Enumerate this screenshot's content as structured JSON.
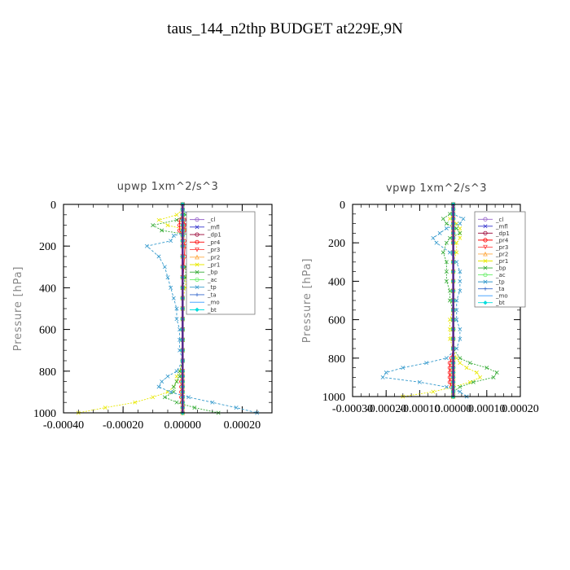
{
  "figure": {
    "title": "taus_144_n2thp  BUDGET at229E,9N"
  },
  "chart_data": [
    {
      "type": "line",
      "title": "upwp   1xm^2/s^3",
      "ylabel": "Pressure [hPa]",
      "xlabel": "",
      "xlim": [
        -0.0004,
        0.0003
      ],
      "ylim": [
        1000,
        0
      ],
      "xticks": [
        -0.0004,
        -0.0002,
        0.0,
        0.0002
      ],
      "xtick_labels": [
        "-0.00040",
        "-0.00020",
        "0.00000",
        "0.00020"
      ],
      "yticks": [
        0,
        200,
        400,
        600,
        800,
        1000
      ],
      "ytick_labels": [
        "0",
        "200",
        "400",
        "600",
        "800",
        "1000"
      ],
      "legend_position": "top-right",
      "y": [
        0,
        25,
        50,
        75,
        100,
        125,
        150,
        175,
        200,
        250,
        300,
        350,
        400,
        450,
        500,
        550,
        600,
        650,
        700,
        750,
        800,
        825,
        850,
        875,
        900,
        925,
        950,
        975,
        1000
      ],
      "series": [
        {
          "name": "_cl",
          "color": "#9966cc",
          "marker": "o",
          "values": [
            0,
            0,
            0,
            0,
            0,
            0,
            0,
            0,
            0,
            0,
            0,
            0,
            0,
            0,
            0,
            0,
            0,
            0,
            0,
            0,
            0,
            0,
            0,
            0,
            0,
            0,
            0,
            0,
            0
          ]
        },
        {
          "name": "_mfl",
          "color": "#3333cc",
          "marker": "x",
          "values": [
            0,
            0,
            0,
            0,
            0,
            0,
            0,
            0,
            0,
            0,
            0,
            0,
            0,
            0,
            0,
            0,
            0,
            0,
            0,
            0,
            0,
            0,
            0,
            0,
            0,
            0,
            0,
            0,
            0
          ]
        },
        {
          "name": "_dp1",
          "color": "#990033",
          "marker": "o",
          "values": [
            0,
            0,
            0,
            5e-06,
            5e-06,
            5e-06,
            0,
            0,
            0,
            0,
            0,
            0,
            0,
            0,
            0,
            0,
            0,
            0,
            0,
            0,
            0,
            0,
            0,
            0,
            0,
            0,
            0,
            0,
            0
          ]
        },
        {
          "name": "_pr4",
          "color": "#ff0000",
          "marker": "o",
          "values": [
            0,
            0,
            0,
            -1e-05,
            -1e-05,
            -1e-05,
            0,
            5e-06,
            8e-06,
            6e-06,
            4e-06,
            2e-06,
            1e-06,
            0,
            0,
            0,
            0,
            0,
            0,
            0,
            -3e-06,
            -3e-06,
            -4e-06,
            -4e-06,
            -4e-06,
            -4e-06,
            -2e-06,
            0,
            0
          ]
        },
        {
          "name": "_pr3",
          "color": "#ff4444",
          "marker": "v",
          "values": [
            0,
            0,
            0,
            5e-06,
            8e-06,
            8e-06,
            0,
            0,
            0,
            0,
            0,
            0,
            0,
            0,
            0,
            0,
            0,
            0,
            0,
            0,
            0,
            0,
            0,
            0,
            0,
            0,
            0,
            0,
            0
          ]
        },
        {
          "name": "_pr2",
          "color": "#ffaa44",
          "marker": "^",
          "values": [
            0,
            0,
            0,
            0,
            0,
            0,
            0,
            0,
            0,
            0,
            0,
            0,
            0,
            0,
            0,
            0,
            0,
            0,
            0,
            0,
            0,
            0,
            0,
            0,
            0,
            0,
            0,
            0,
            0
          ]
        },
        {
          "name": "_pr1",
          "color": "#e8e800",
          "marker": "x",
          "values": [
            0,
            0,
            -2e-05,
            -8e-05,
            -5e-05,
            2e-05,
            8e-05,
            6e-05,
            4e-05,
            3e-05,
            2e-05,
            1e-05,
            1e-05,
            0,
            0,
            0,
            0,
            0,
            0,
            0,
            -1e-05,
            -2e-05,
            -2e-05,
            -3e-05,
            -5e-05,
            -0.0001,
            -0.00016,
            -0.00026,
            -0.00035
          ]
        },
        {
          "name": "_bp",
          "color": "#33aa33",
          "marker": "x",
          "values": [
            0,
            0,
            1e-05,
            -2e-05,
            -0.0001,
            -7e-05,
            4e-05,
            6e-05,
            3e-05,
            2e-05,
            1e-05,
            1e-05,
            0,
            0,
            0,
            0,
            0,
            0,
            0,
            0,
            -1e-05,
            -1e-05,
            -2e-05,
            -3e-05,
            -3e-05,
            -6e-05,
            -2e-05,
            4e-05,
            0.00012
          ]
        },
        {
          "name": "_ac",
          "color": "#66ee66",
          "marker": "o",
          "values": [
            0,
            0,
            0,
            0,
            0,
            0,
            0,
            0,
            0,
            0,
            0,
            0,
            0,
            0,
            0,
            0,
            0,
            0,
            0,
            0,
            0,
            0,
            0,
            0,
            0,
            0,
            0,
            0,
            0
          ]
        },
        {
          "name": "_tp",
          "color": "#3399cc",
          "marker": "x",
          "values": [
            0,
            0,
            2e-05,
            0.00012,
            0.00016,
            4e-05,
            -3e-05,
            -4e-05,
            -0.00012,
            -8e-05,
            -6e-05,
            -5e-05,
            -4e-05,
            -3e-05,
            -2e-05,
            -2e-05,
            -1e-05,
            -1e-05,
            -1e-05,
            0,
            -2e-05,
            -5e-05,
            -7e-05,
            -8e-05,
            -4e-05,
            2e-05,
            0.0001,
            0.00018,
            0.00025
          ]
        },
        {
          "name": "_ta",
          "color": "#3366cc",
          "marker": "+",
          "values": [
            0,
            0,
            0,
            0,
            0,
            0,
            0,
            0,
            0,
            0,
            0,
            0,
            0,
            0,
            0,
            0,
            0,
            0,
            0,
            0,
            0,
            0,
            0,
            0,
            0,
            0,
            0,
            0,
            0
          ]
        },
        {
          "name": "_mo",
          "color": "#3399ff",
          "marker": "",
          "values": [
            0,
            0,
            0,
            0,
            0,
            0,
            0,
            0,
            0,
            0,
            0,
            0,
            0,
            0,
            0,
            0,
            0,
            0,
            0,
            0,
            0,
            0,
            0,
            0,
            0,
            0,
            0,
            0,
            0
          ]
        },
        {
          "name": "_bt",
          "color": "#00dddd",
          "marker": "d",
          "values": [
            0,
            0,
            0,
            0,
            0,
            0,
            0,
            0,
            0,
            0,
            0,
            0,
            0,
            0,
            0,
            0,
            0,
            0,
            0,
            0,
            0,
            0,
            0,
            0,
            0,
            0,
            0,
            0,
            0
          ]
        }
      ]
    },
    {
      "type": "line",
      "title": "vpwp   1xm^2/s^3",
      "ylabel": "Pressure [hPa]",
      "xlabel": "",
      "xlim": [
        -0.0003,
        0.0002
      ],
      "ylim": [
        1000,
        0
      ],
      "xticks": [
        -0.0003,
        -0.0002,
        -0.0001,
        0.0,
        0.0001,
        0.0002
      ],
      "xtick_labels": [
        "-0.00030",
        "-0.00020",
        "-0.00010",
        "0.00000",
        "0.00010",
        "0.00020"
      ],
      "yticks": [
        0,
        200,
        400,
        600,
        800,
        1000
      ],
      "ytick_labels": [
        "0",
        "200",
        "400",
        "600",
        "800",
        "1000"
      ],
      "legend_position": "top-right",
      "y": [
        0,
        25,
        50,
        75,
        100,
        125,
        150,
        175,
        200,
        250,
        300,
        350,
        400,
        450,
        500,
        550,
        600,
        650,
        700,
        750,
        800,
        825,
        850,
        875,
        900,
        925,
        950,
        975,
        1000
      ],
      "series": [
        {
          "name": "_cl",
          "color": "#9966cc",
          "marker": "o",
          "values": [
            0,
            0,
            0,
            0,
            0,
            0,
            0,
            0,
            0,
            0,
            0,
            0,
            0,
            0,
            0,
            0,
            0,
            0,
            0,
            0,
            0,
            0,
            0,
            0,
            0,
            0,
            0,
            0,
            0
          ]
        },
        {
          "name": "_mfl",
          "color": "#3333cc",
          "marker": "x",
          "values": [
            0,
            0,
            0,
            0,
            0,
            0,
            0,
            0,
            0,
            0,
            0,
            0,
            0,
            0,
            0,
            0,
            0,
            0,
            0,
            0,
            0,
            0,
            0,
            0,
            0,
            0,
            0,
            0,
            0
          ]
        },
        {
          "name": "_dp1",
          "color": "#990033",
          "marker": "o",
          "values": [
            0,
            0,
            0,
            0,
            0,
            0,
            0,
            0,
            0,
            0,
            0,
            0,
            0,
            0,
            0,
            0,
            0,
            0,
            0,
            0,
            0,
            0,
            0,
            0,
            0,
            0,
            0,
            0,
            0
          ]
        },
        {
          "name": "_pr4",
          "color": "#ff0000",
          "marker": "o",
          "values": [
            0,
            0,
            0,
            0,
            0,
            0,
            0,
            0,
            0,
            0,
            0,
            0,
            0,
            0,
            0,
            0,
            0,
            0,
            0,
            0,
            -5e-06,
            -1e-05,
            -1e-05,
            -1e-05,
            -1e-05,
            -1e-05,
            -5e-06,
            0,
            0
          ]
        },
        {
          "name": "_pr3",
          "color": "#ff4444",
          "marker": "v",
          "values": [
            0,
            0,
            0,
            0,
            0,
            0,
            0,
            0,
            0,
            0,
            0,
            0,
            0,
            0,
            0,
            0,
            0,
            0,
            0,
            0,
            0,
            0,
            0,
            0,
            0,
            0,
            0,
            0,
            0
          ]
        },
        {
          "name": "_pr2",
          "color": "#ffaa44",
          "marker": "^",
          "values": [
            0,
            0,
            0,
            0,
            0,
            0,
            0,
            0,
            0,
            0,
            0,
            0,
            0,
            0,
            0,
            0,
            0,
            0,
            0,
            0,
            0,
            0,
            0,
            0,
            0,
            0,
            0,
            0,
            0
          ]
        },
        {
          "name": "_pr1",
          "color": "#e8e800",
          "marker": "x",
          "values": [
            0,
            0,
            0,
            -1e-05,
            1e-05,
            2e-05,
            2e-05,
            2e-05,
            1e-05,
            1e-05,
            0,
            0,
            0,
            0,
            0,
            0,
            -1e-05,
            -1e-05,
            -1e-05,
            0,
            1e-05,
            2e-05,
            4e-05,
            7e-05,
            8e-05,
            5e-05,
            0,
            -6e-05,
            -0.00015
          ]
        },
        {
          "name": "_bp",
          "color": "#33aa33",
          "marker": "x",
          "values": [
            0,
            0,
            -1e-05,
            -3e-05,
            -2e-05,
            1e-05,
            2e-05,
            -1e-05,
            -2e-05,
            -3e-05,
            -2e-05,
            -2e-05,
            -2e-05,
            -1e-05,
            -1e-05,
            0,
            0,
            0,
            0,
            0,
            2e-05,
            5e-05,
            0.0001,
            0.00013,
            0.00012,
            6e-05,
            2e-05,
            0,
            0
          ]
        },
        {
          "name": "_ac",
          "color": "#66ee66",
          "marker": "o",
          "values": [
            0,
            0,
            0,
            0,
            0,
            0,
            0,
            0,
            0,
            0,
            0,
            0,
            0,
            0,
            0,
            0,
            0,
            0,
            0,
            0,
            0,
            0,
            0,
            0,
            0,
            0,
            0,
            0,
            0
          ]
        },
        {
          "name": "_tp",
          "color": "#3399cc",
          "marker": "x",
          "values": [
            0,
            0,
            0,
            3e-05,
            2e-05,
            -2e-05,
            -4e-05,
            -6e-05,
            -5e-05,
            -1e-05,
            1e-05,
            2e-05,
            2e-05,
            2e-05,
            1e-05,
            1e-05,
            1e-05,
            2e-05,
            2e-05,
            1e-05,
            -2e-05,
            -8e-05,
            -0.00015,
            -0.0002,
            -0.00021,
            -0.0001,
            -2e-05,
            2e-05,
            4e-05
          ]
        },
        {
          "name": "_ta",
          "color": "#3366cc",
          "marker": "+",
          "values": [
            0,
            0,
            0,
            0,
            0,
            0,
            0,
            0,
            0,
            0,
            0,
            0,
            0,
            0,
            0,
            0,
            0,
            0,
            0,
            0,
            0,
            0,
            0,
            0,
            0,
            0,
            0,
            0,
            0
          ]
        },
        {
          "name": "_mo",
          "color": "#3399ff",
          "marker": "",
          "values": [
            0,
            0,
            0,
            0,
            0,
            0,
            0,
            0,
            0,
            0,
            0,
            0,
            0,
            0,
            0,
            0,
            0,
            0,
            0,
            0,
            0,
            0,
            0,
            0,
            0,
            0,
            0,
            0,
            0
          ]
        },
        {
          "name": "_bt",
          "color": "#00dddd",
          "marker": "d",
          "values": [
            0,
            0,
            0,
            0,
            0,
            0,
            0,
            0,
            0,
            0,
            0,
            0,
            0,
            0,
            0,
            0,
            0,
            0,
            0,
            0,
            0,
            0,
            0,
            0,
            0,
            0,
            0,
            0,
            0
          ]
        }
      ]
    }
  ]
}
